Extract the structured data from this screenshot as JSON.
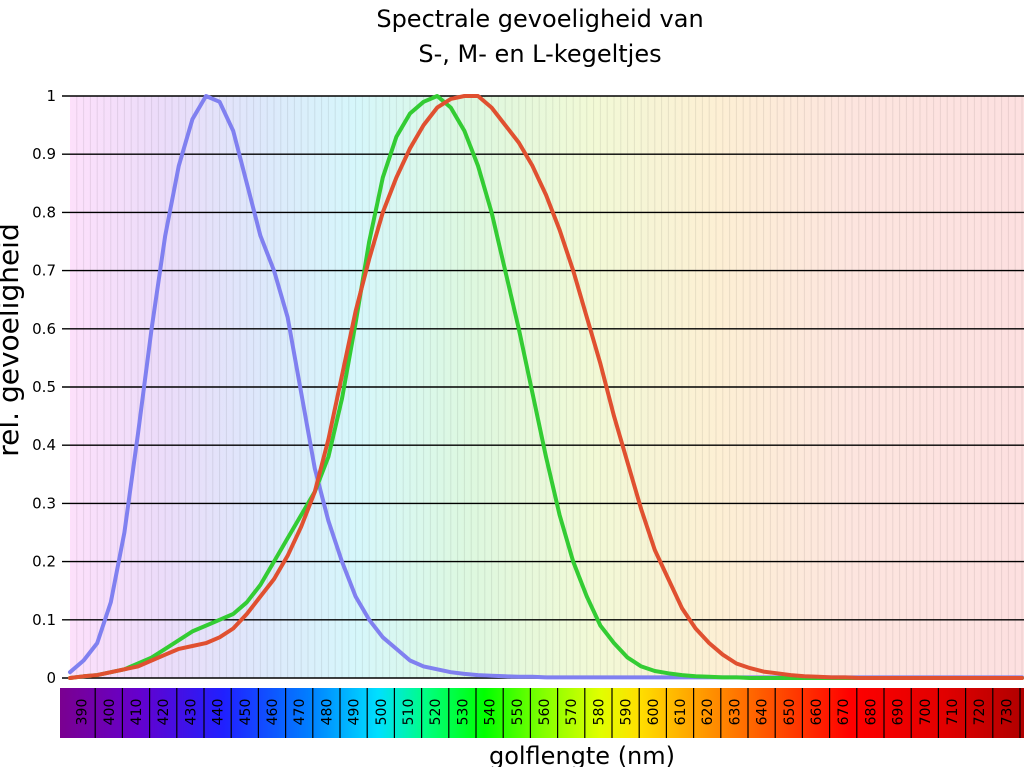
{
  "chart_data": {
    "type": "line",
    "title": [
      "Spectrale gevoeligheid van",
      "S-, M- en L-kegeltjes"
    ],
    "xlabel": "golflengte (nm)",
    "ylabel": "rel. gevoeligheid",
    "xlim": [
      385,
      735
    ],
    "ylim": [
      0,
      1
    ],
    "grid": true,
    "yticks": [
      "0",
      "0.1",
      "0.2",
      "0.3",
      "0.4",
      "0.5",
      "0.6",
      "0.7",
      "0.8",
      "0.9",
      "1"
    ],
    "xticks": [
      "390",
      "400",
      "410",
      "420",
      "430",
      "440",
      "450",
      "460",
      "470",
      "480",
      "490",
      "500",
      "510",
      "520",
      "530",
      "540",
      "550",
      "560",
      "570",
      "580",
      "590",
      "600",
      "610",
      "620",
      "630",
      "640",
      "650",
      "660",
      "670",
      "680",
      "690",
      "700",
      "710",
      "720",
      "730"
    ],
    "x": [
      385,
      390,
      395,
      400,
      405,
      410,
      415,
      420,
      425,
      430,
      435,
      440,
      445,
      450,
      455,
      460,
      465,
      470,
      475,
      480,
      485,
      490,
      495,
      500,
      505,
      510,
      515,
      520,
      525,
      530,
      535,
      540,
      545,
      550,
      555,
      560,
      565,
      570,
      575,
      580,
      585,
      590,
      595,
      600,
      605,
      610,
      615,
      620,
      625,
      630,
      635,
      640,
      645,
      650,
      655,
      660,
      665,
      670,
      675,
      680,
      685,
      690,
      695,
      700,
      705,
      710,
      715,
      720,
      725,
      730,
      735
    ],
    "series": [
      {
        "color": "#8080f0",
        "values": [
          0.01,
          0.03,
          0.06,
          0.13,
          0.25,
          0.42,
          0.6,
          0.76,
          0.88,
          0.96,
          1.0,
          0.99,
          0.94,
          0.85,
          0.76,
          0.7,
          0.62,
          0.49,
          0.36,
          0.27,
          0.2,
          0.14,
          0.1,
          0.07,
          0.05,
          0.03,
          0.02,
          0.015,
          0.01,
          0.007,
          0.005,
          0.004,
          0.003,
          0.002,
          0.002,
          0.001,
          0.001,
          0.001,
          0.001,
          0.001,
          0.001,
          0.001,
          0.001,
          0.001,
          0.001,
          0.001,
          0.001,
          0.001,
          0.001,
          0.001,
          0.001,
          0.001,
          0.001,
          0.001,
          0.001,
          0.001,
          0.001,
          0.001,
          0.001,
          0.001,
          0.001,
          0.001,
          0.001,
          0.001,
          0.001,
          0.001,
          0.001,
          0.001,
          0.001,
          0.001,
          0.001
        ]
      },
      {
        "color": "#33cc33",
        "values": [
          0.0,
          0.003,
          0.005,
          0.01,
          0.015,
          0.025,
          0.035,
          0.05,
          0.065,
          0.08,
          0.09,
          0.1,
          0.11,
          0.13,
          0.16,
          0.2,
          0.24,
          0.28,
          0.32,
          0.38,
          0.48,
          0.61,
          0.75,
          0.86,
          0.93,
          0.97,
          0.99,
          1.0,
          0.98,
          0.94,
          0.88,
          0.8,
          0.7,
          0.6,
          0.49,
          0.38,
          0.28,
          0.2,
          0.14,
          0.09,
          0.06,
          0.035,
          0.02,
          0.012,
          0.008,
          0.005,
          0.003,
          0.002,
          0.001,
          0.001,
          0.0,
          0.0,
          0.0,
          0.0,
          0.0,
          0.0,
          0.0,
          0.0,
          0.0,
          0.0,
          0.0,
          0.0,
          0.0,
          0.0,
          0.0,
          0.0,
          0.0,
          0.0,
          0.0,
          0.0,
          0.0
        ]
      },
      {
        "color": "#e05030",
        "values": [
          0.0,
          0.003,
          0.005,
          0.01,
          0.015,
          0.02,
          0.03,
          0.04,
          0.05,
          0.055,
          0.06,
          0.07,
          0.085,
          0.11,
          0.14,
          0.17,
          0.21,
          0.26,
          0.32,
          0.41,
          0.52,
          0.63,
          0.72,
          0.8,
          0.86,
          0.91,
          0.95,
          0.98,
          0.995,
          1.0,
          1.0,
          0.98,
          0.95,
          0.92,
          0.88,
          0.83,
          0.77,
          0.7,
          0.62,
          0.54,
          0.45,
          0.37,
          0.29,
          0.22,
          0.17,
          0.12,
          0.085,
          0.06,
          0.04,
          0.025,
          0.017,
          0.011,
          0.008,
          0.005,
          0.003,
          0.002,
          0.001,
          0.001,
          0.0,
          0.0,
          0.0,
          0.0,
          0.0,
          0.0,
          0.0,
          0.0,
          0.0,
          0.0,
          0.0,
          0.0,
          0.0
        ]
      }
    ]
  }
}
